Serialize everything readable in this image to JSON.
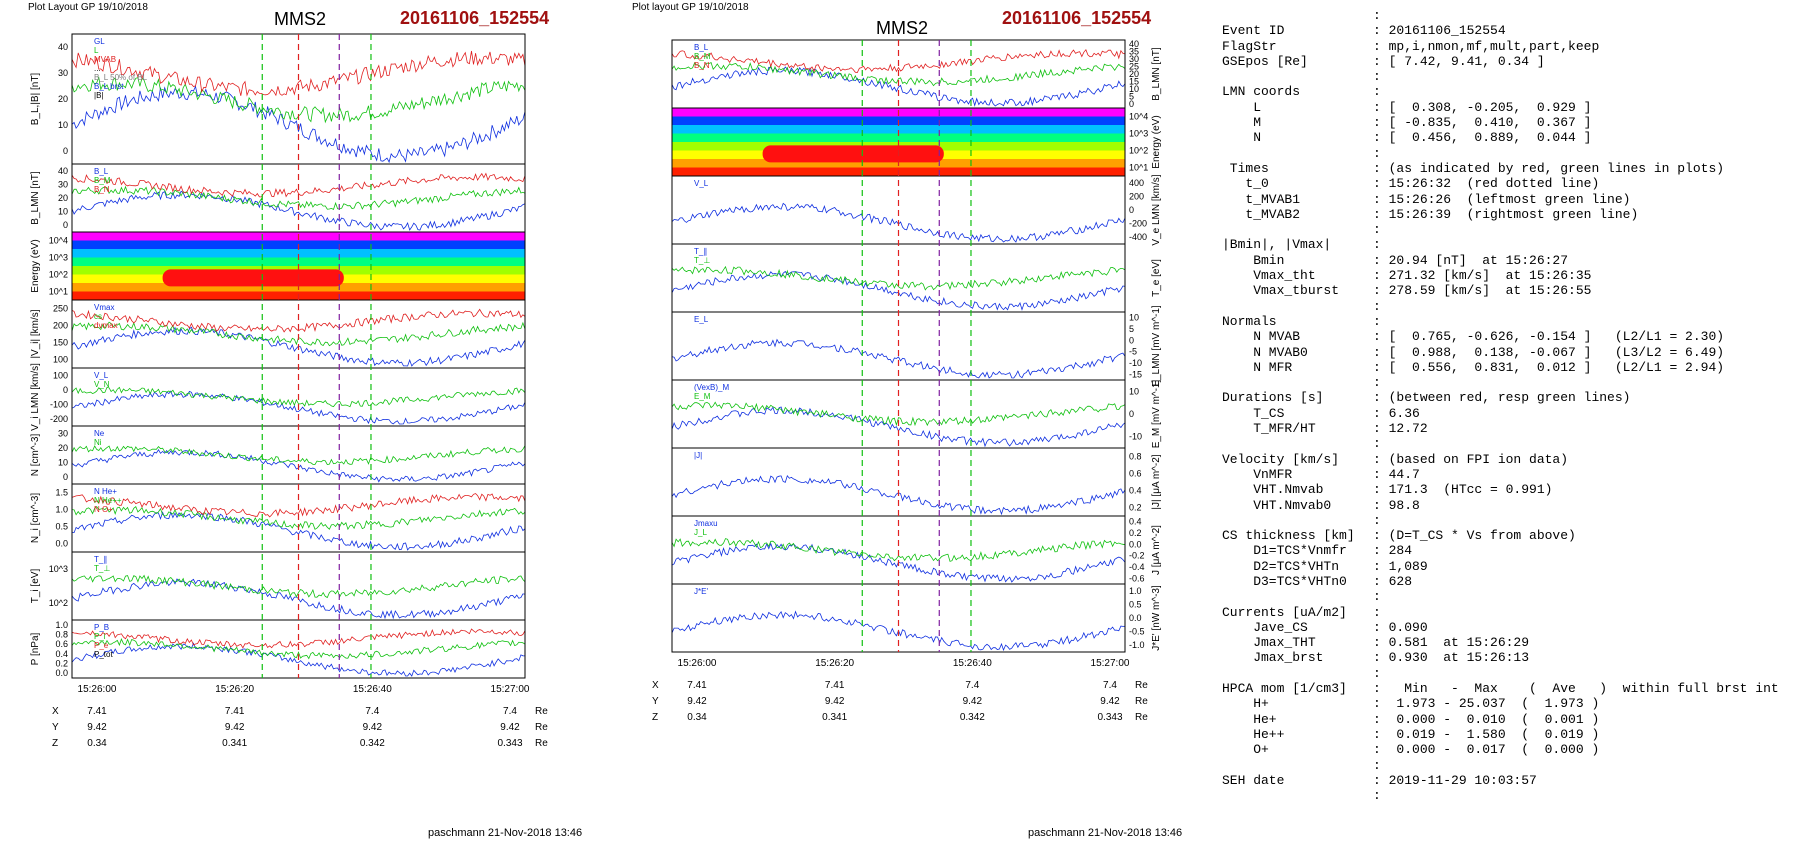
{
  "left": {
    "header": "Plot Layout GP 19/10/2018",
    "spacecraft": "MMS2",
    "event": "20161106_152554",
    "footer": "paschmann 21-Nov-2018 13:46",
    "panels": [
      {
        "ylabel": "B_L,|B| [nT]",
        "ticks": [
          "0",
          "10",
          "20",
          "30",
          "40"
        ],
        "legend": [
          "GL",
          "L",
          "MVAB",
          "...",
          "B_L 50% of BL",
          "B_L brst",
          "|B|"
        ]
      },
      {
        "ylabel": "B_LMN [nT]",
        "ticks": [
          "0",
          "10",
          "20",
          "30",
          "40"
        ],
        "legend": [
          "B_L",
          "B_M",
          "B_N"
        ]
      },
      {
        "ylabel": "Energy (eV)",
        "ticks": [
          "10^1",
          "10^2",
          "10^3",
          "10^4"
        ]
      },
      {
        "ylabel": "|V_i| [km/s]",
        "ticks": [
          "100",
          "150",
          "200",
          "250"
        ],
        "legend": [
          "Vmax",
          "cs",
          "dvmax"
        ]
      },
      {
        "ylabel": "V_i LMN [km/s]",
        "ticks": [
          "-200",
          "-100",
          "0",
          "100"
        ],
        "legend": [
          "V_L",
          "V_N"
        ]
      },
      {
        "ylabel": "N [cm^-3]",
        "ticks": [
          "0",
          "10",
          "20",
          "30"
        ],
        "legend": [
          "Ne",
          "Ni"
        ]
      },
      {
        "ylabel": "N_i [cm^-3]",
        "ticks": [
          "0.0",
          "0.5",
          "1.0",
          "1.5"
        ],
        "legend": [
          "N He+",
          "N He++",
          "N O+"
        ]
      },
      {
        "ylabel": "T_i [eV]",
        "ticks": [
          "10^2",
          "10^3"
        ],
        "legend": [
          "T_∥",
          "T_⊥"
        ]
      },
      {
        "ylabel": "P [nPa]",
        "ticks": [
          "0.0",
          "0.2",
          "0.4",
          "0.6",
          "0.8",
          "1.0"
        ],
        "legend": [
          "P_B",
          "P_i",
          "P_e",
          "P_tot"
        ]
      }
    ],
    "time_ticks": [
      "15:26:00",
      "15:26:20",
      "15:26:40",
      "15:27:00"
    ],
    "pos_labels": [
      "X",
      "Y",
      "Z"
    ],
    "pos_values": [
      [
        "7.41",
        "7.41",
        "7.4",
        "7.4"
      ],
      [
        "9.42",
        "9.42",
        "9.42",
        "9.42"
      ],
      [
        "0.34",
        "0.341",
        "0.342",
        "0.343"
      ]
    ],
    "pos_unit": "Re"
  },
  "middle": {
    "header": "Plot layout GP 19/10/2018",
    "spacecraft": "MMS2",
    "event": "20161106_152554",
    "footer": "paschmann 21-Nov-2018 13:46",
    "panels": [
      {
        "ylabel": "B_LMN [nT]",
        "ticks": [
          "0",
          "5",
          "10",
          "15",
          "20",
          "25",
          "30",
          "35",
          "40"
        ],
        "legend": [
          "B_L",
          "B_M",
          "B_N"
        ]
      },
      {
        "ylabel": "Energy (eV)",
        "ticks": [
          "10^1",
          "10^2",
          "10^3",
          "10^4"
        ]
      },
      {
        "ylabel": "V_e LMN [km/s]",
        "ticks": [
          "-400",
          "-200",
          "0",
          "200",
          "400"
        ],
        "legend": [
          "V_L"
        ]
      },
      {
        "ylabel": "T_e [eV]",
        "ticks": [],
        "legend": [
          "T_∥",
          "T_⊥"
        ]
      },
      {
        "ylabel": "E_LMN [mV m^-1]",
        "ticks": [
          "-15",
          "-10",
          "-5",
          "0",
          "5",
          "10"
        ],
        "legend": [
          "E_L"
        ]
      },
      {
        "ylabel": "E_M [mV m^-1]",
        "ticks": [
          "-10",
          "0",
          "10"
        ],
        "legend": [
          "(VexB)_M",
          "E_M"
        ]
      },
      {
        "ylabel": "|J| [μA m^-2]",
        "ticks": [
          "0.2",
          "0.4",
          "0.6",
          "0.8"
        ],
        "legend": [
          "|J|"
        ]
      },
      {
        "ylabel": "J [μA m^-2]",
        "ticks": [
          "-0.6",
          "-0.4",
          "-0.2",
          "0.0",
          "0.2",
          "0.4"
        ],
        "legend": [
          "Jmaxu",
          "J_L"
        ]
      },
      {
        "ylabel": "J*E' [nW m^-3]",
        "ticks": [
          "-1.0",
          "-0.5",
          "0.0",
          "0.5",
          "1.0"
        ],
        "legend": [
          "J*E'"
        ]
      }
    ],
    "time_ticks": [
      "15:26:00",
      "15:26:20",
      "15:26:40",
      "15:27:00"
    ],
    "pos_labels": [
      "X",
      "Y",
      "Z"
    ],
    "pos_values": [
      [
        "7.41",
        "7.41",
        "7.4",
        "7.4"
      ],
      [
        "9.42",
        "9.42",
        "9.42",
        "9.42"
      ],
      [
        "0.34",
        "0.341",
        "0.342",
        "0.343"
      ]
    ],
    "pos_unit": "Re"
  },
  "summary_rows": [
    [
      "",
      ":",
      ""
    ],
    [
      "Event ID",
      ":",
      "20161106_152554"
    ],
    [
      "FlagStr",
      ":",
      "mp,i,nmon,mf,mult,part,keep"
    ],
    [
      "GSEpos [Re]",
      ":",
      "[ 7.42, 9.41, 0.34 ]"
    ],
    [
      "",
      ":",
      ""
    ],
    [
      "LMN coords",
      ":",
      ""
    ],
    [
      "    L",
      ":",
      "[  0.308, -0.205,  0.929 ]"
    ],
    [
      "    M",
      ":",
      "[ -0.835,  0.410,  0.367 ]"
    ],
    [
      "    N",
      ":",
      "[  0.456,  0.889,  0.044 ]"
    ],
    [
      "",
      ":",
      ""
    ],
    [
      " Times",
      ":",
      "(as indicated by red, green lines in plots)"
    ],
    [
      "   t_0",
      ":",
      "15:26:32  (red dotted line)"
    ],
    [
      "   t_MVAB1",
      ":",
      "15:26:26  (leftmost green line)"
    ],
    [
      "   t_MVAB2",
      ":",
      "15:26:39  (rightmost green line)"
    ],
    [
      "",
      ":",
      ""
    ],
    [
      "|Bmin|, |Vmax|",
      ":",
      ""
    ],
    [
      "    Bmin",
      ":",
      "20.94 [nT]  at 15:26:27"
    ],
    [
      "    Vmax_tht",
      ":",
      "271.32 [km/s]  at 15:26:35"
    ],
    [
      "    Vmax_tburst",
      ":",
      "278.59 [km/s]  at 15:26:55"
    ],
    [
      "",
      ":",
      ""
    ],
    [
      "Normals",
      ":",
      ""
    ],
    [
      "    N MVAB",
      ":",
      "[  0.765, -0.626, -0.154 ]   (L2/L1 = 2.30)"
    ],
    [
      "    N MVAB0",
      ":",
      "[  0.988,  0.138, -0.067 ]   (L3/L2 = 6.49)"
    ],
    [
      "    N MFR",
      ":",
      "[  0.556,  0.831,  0.012 ]   (L2/L1 = 2.94)"
    ],
    [
      "",
      ":",
      ""
    ],
    [
      "Durations [s]",
      ":",
      "(between red, resp green lines)"
    ],
    [
      "    T_CS",
      ":",
      "6.36"
    ],
    [
      "    T_MFR/HT",
      ":",
      "12.72"
    ],
    [
      "",
      ":",
      ""
    ],
    [
      "Velocity [km/s]",
      ":",
      "(based on FPI ion data)"
    ],
    [
      "    VnMFR",
      ":",
      "44.7"
    ],
    [
      "    VHT.Nmvab",
      ":",
      "171.3  (HTcc = 0.991)"
    ],
    [
      "    VHT.Nmvab0",
      ":",
      "98.8"
    ],
    [
      "",
      ":",
      ""
    ],
    [
      "CS thickness [km]",
      ":",
      "(D=T_CS * Vs from above)"
    ],
    [
      "    D1=TCS*Vnmfr",
      ":",
      "284"
    ],
    [
      "    D2=TCS*VHTn",
      ":",
      "1,089"
    ],
    [
      "    D3=TCS*VHTn0",
      ":",
      "628"
    ],
    [
      "",
      ":",
      ""
    ],
    [
      "Currents [uA/m2]",
      ":",
      ""
    ],
    [
      "    Jave_CS",
      ":",
      "0.090"
    ],
    [
      "    Jmax_THT",
      ":",
      "0.581  at 15:26:29"
    ],
    [
      "    Jmax_brst",
      ":",
      "0.930  at 15:26:13"
    ],
    [
      "",
      ":",
      ""
    ],
    [
      "HPCA mom [1/cm3]",
      ":",
      "  Min   -  Max    (  Ave   )  within full brst int"
    ],
    [
      "    H+",
      ":",
      " 1.973 - 25.037  (  1.973 )"
    ],
    [
      "    He+",
      ":",
      " 0.000 -  0.010  (  0.001 )"
    ],
    [
      "    He++",
      ":",
      " 0.019 -  1.580  (  0.019 )"
    ],
    [
      "    O+",
      ":",
      " 0.000 -  0.017  (  0.000 )"
    ],
    [
      "",
      ":",
      ""
    ],
    [
      "SEH date",
      ":",
      "2019-11-29 10:03:57"
    ],
    [
      "",
      ":",
      ""
    ]
  ],
  "colors": {
    "event": "#a01010",
    "bl": "#1030e0",
    "green": "#10c010",
    "red": "#e02020"
  },
  "chart_data": {
    "type": "line",
    "x": [
      "15:26:00",
      "15:26:20",
      "15:26:40",
      "15:27:00"
    ],
    "series": [
      {
        "name": "B_L",
        "values": [
          36,
          22,
          38,
          38
        ]
      },
      {
        "name": "|B|",
        "values": [
          40,
          30,
          40,
          40
        ]
      }
    ],
    "ylim": [
      0,
      40
    ]
  }
}
